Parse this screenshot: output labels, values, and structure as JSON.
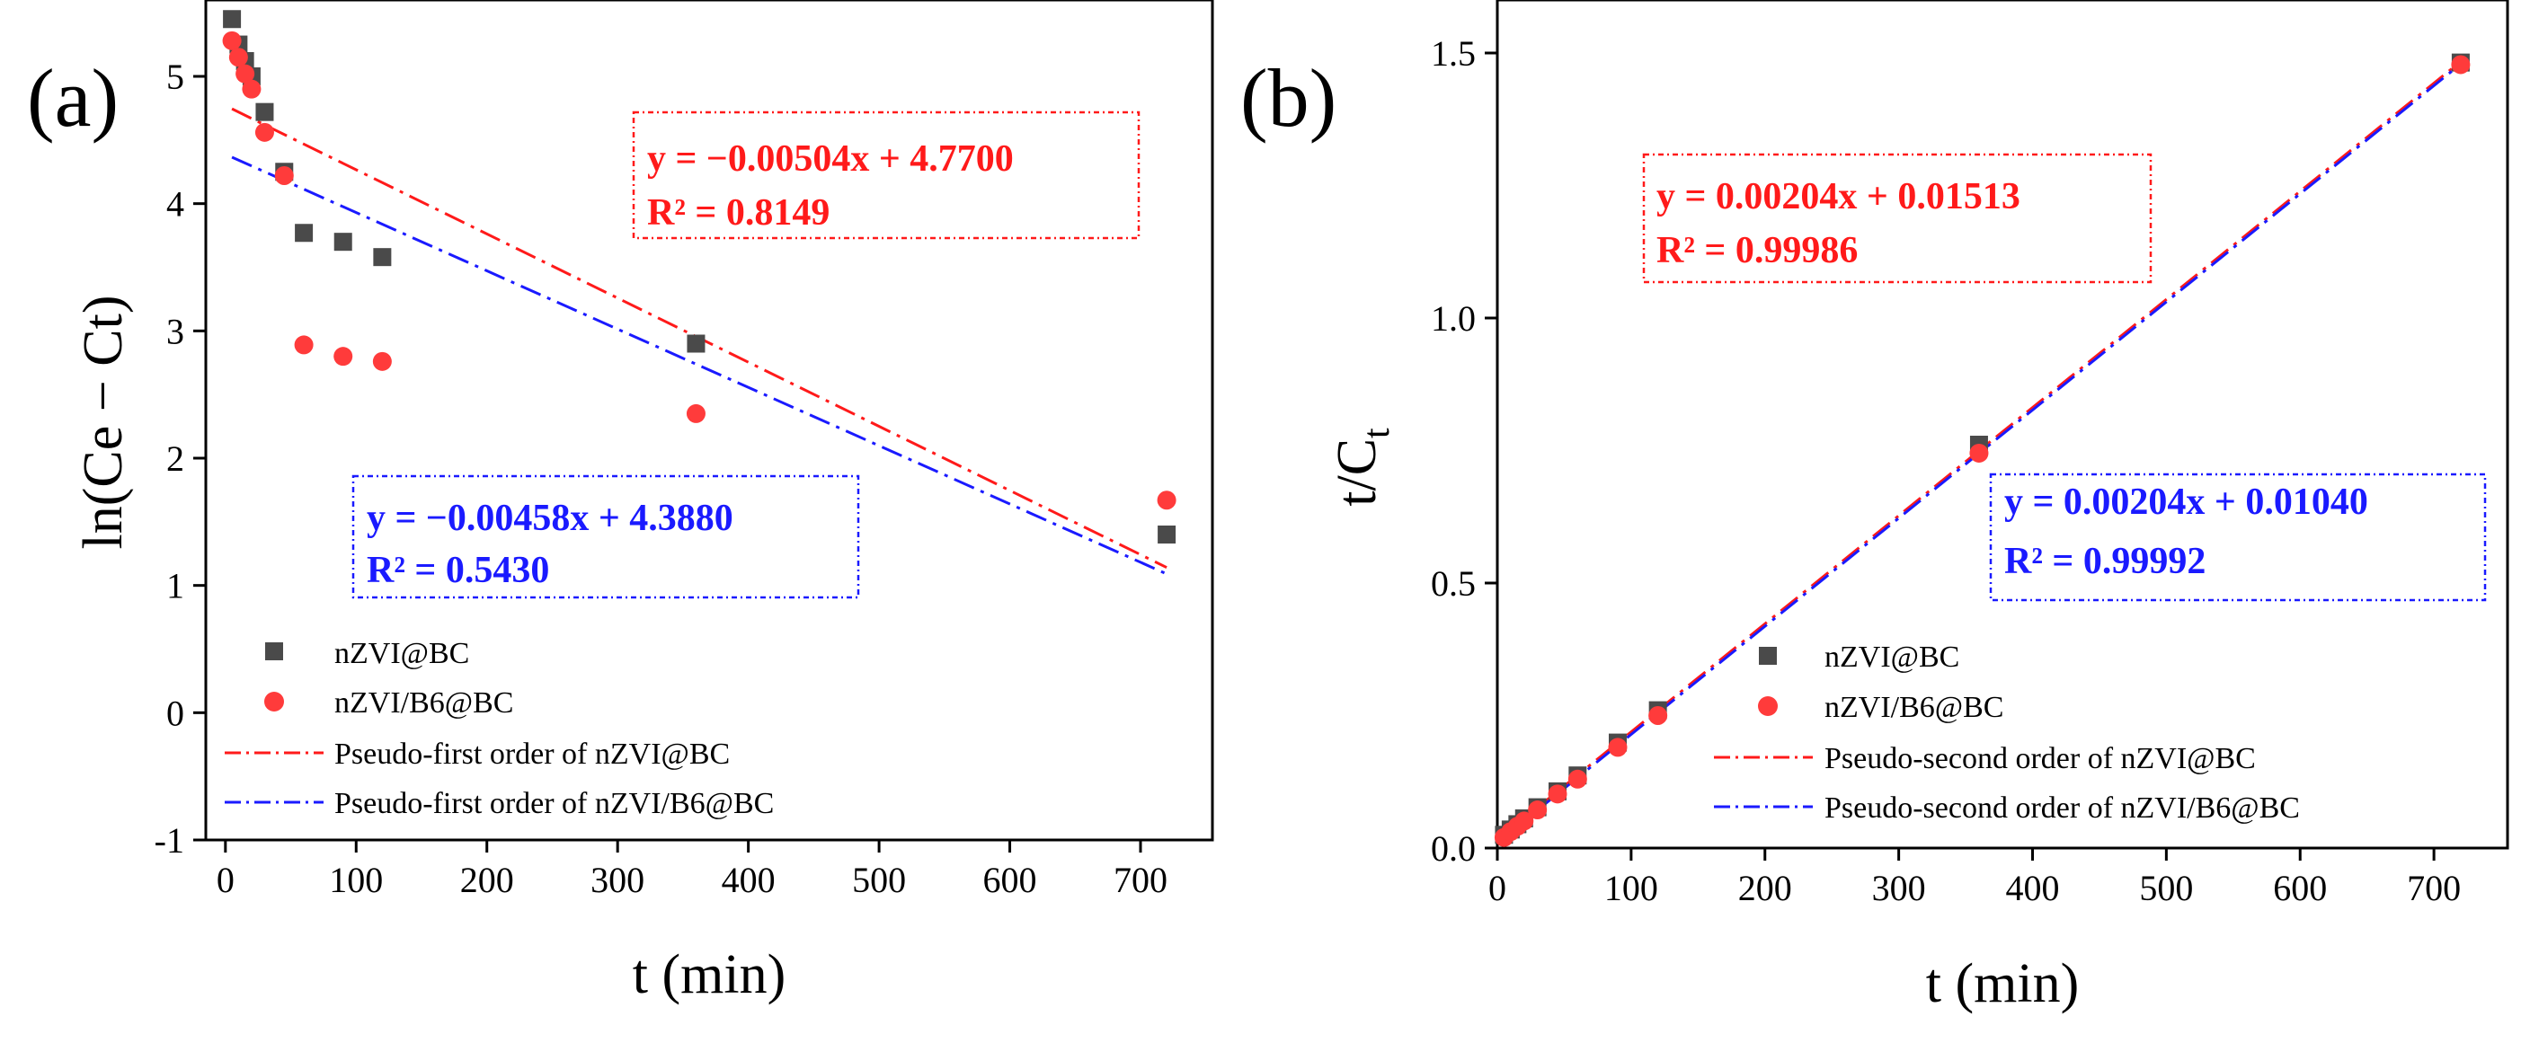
{
  "chart_data": [
    {
      "type": "scatter",
      "panel": "(a)",
      "title": "",
      "xlabel": "t (min)",
      "ylabel": "ln(Ce − Ct)",
      "xlim": [
        -15,
        755
      ],
      "ylim": [
        -1,
        5.6
      ],
      "xticks": [
        0,
        100,
        200,
        300,
        400,
        500,
        600,
        700
      ],
      "yticks": [
        -1,
        0,
        1,
        2,
        3,
        4,
        5
      ],
      "grid": false,
      "series": [
        {
          "name": "nZVI@BC",
          "kind": "points",
          "marker": "square",
          "color": "#4a4a4a",
          "x": [
            5,
            10,
            15,
            20,
            30,
            45,
            60,
            90,
            120,
            360,
            720
          ],
          "y": [
            5.45,
            5.25,
            5.12,
            5.0,
            4.72,
            4.25,
            3.77,
            3.7,
            3.58,
            2.9,
            1.4
          ]
        },
        {
          "name": "nZVI/B6@BC",
          "kind": "points",
          "marker": "circle",
          "color": "#ff3b3b",
          "x": [
            5,
            10,
            15,
            20,
            30,
            45,
            60,
            90,
            120,
            360,
            720
          ],
          "y": [
            5.28,
            5.15,
            5.02,
            4.9,
            4.56,
            4.22,
            2.89,
            2.8,
            2.76,
            2.35,
            1.67
          ]
        },
        {
          "name": "Pseudo-first order of nZVI@BC",
          "kind": "line",
          "dash": "dashdot",
          "color": "#ff1a1a",
          "slope": -0.00504,
          "intercept": 4.77,
          "x_range": [
            5,
            720
          ]
        },
        {
          "name": "Pseudo-first order of nZVI/B6@BC",
          "kind": "line",
          "dash": "dashdot",
          "color": "#1a1aff",
          "slope": -0.00458,
          "intercept": 4.388,
          "x_range": [
            5,
            720
          ]
        }
      ],
      "annotations": [
        {
          "line1": "y =  −0.00504x + 4.7700",
          "line2": "R² = 0.8149",
          "color": "#ff1a1a",
          "placement": "top-right"
        },
        {
          "line1": "y =  −0.00458x + 4.3880",
          "line2": "R² = 0.5430",
          "color": "#1a1aff",
          "placement": "center"
        }
      ],
      "legend": {
        "placement": "bottom-left",
        "items": [
          "nZVI@BC",
          "nZVI/B6@BC",
          "Pseudo-first order of nZVI@BC",
          "Pseudo-first order of nZVI/B6@BC"
        ]
      }
    },
    {
      "type": "scatter",
      "panel": "(b)",
      "title": "",
      "xlabel": "t (min)",
      "ylabel": "t/C",
      "ylabel_subscript": "t",
      "xlim": [
        0,
        755
      ],
      "ylim": [
        0,
        1.6
      ],
      "xticks": [
        0,
        100,
        200,
        300,
        400,
        500,
        600,
        700
      ],
      "yticks": [
        0.0,
        0.5,
        1.0,
        1.5
      ],
      "ytick_labels": [
        "0.0",
        "0.5",
        "1.0",
        "1.5"
      ],
      "grid": false,
      "series": [
        {
          "name": "nZVI@BC",
          "kind": "points",
          "marker": "square",
          "color": "#4a4a4a",
          "x": [
            5,
            10,
            15,
            20,
            30,
            45,
            60,
            90,
            120,
            360,
            720
          ],
          "y": [
            0.025,
            0.035,
            0.045,
            0.056,
            0.077,
            0.107,
            0.137,
            0.199,
            0.26,
            0.761,
            1.482
          ]
        },
        {
          "name": "nZVI/B6@BC",
          "kind": "points",
          "marker": "circle",
          "color": "#ff3b3b",
          "x": [
            5,
            10,
            15,
            20,
            30,
            45,
            60,
            90,
            120,
            360,
            720
          ],
          "y": [
            0.02,
            0.031,
            0.041,
            0.051,
            0.072,
            0.102,
            0.13,
            0.19,
            0.25,
            0.745,
            1.478
          ]
        },
        {
          "name": "Pseudo-second order of nZVI@BC",
          "kind": "line",
          "dash": "dashdot",
          "color": "#ff1a1a",
          "slope": 0.00204,
          "intercept": 0.01513,
          "x_range": [
            5,
            720
          ]
        },
        {
          "name": "Pseudo-second order of nZVI/B6@BC",
          "kind": "line",
          "dash": "dashdot",
          "color": "#1a1aff",
          "slope": 0.00204,
          "intercept": 0.0104,
          "x_range": [
            5,
            720
          ]
        }
      ],
      "annotations": [
        {
          "line1": "y = 0.00204x + 0.01513",
          "line2": "R² = 0.99986",
          "color": "#ff1a1a",
          "placement": "top-left"
        },
        {
          "line1": "y = 0.00204x + 0.01040",
          "line2": "R² = 0.99992",
          "color": "#1a1aff",
          "placement": "center-right"
        }
      ],
      "legend": {
        "placement": "bottom-right",
        "items": [
          "nZVI@BC",
          "nZVI/B6@BC",
          "Pseudo-second order of nZVI@BC",
          "Pseudo-second order of nZVI/B6@BC"
        ]
      }
    }
  ]
}
